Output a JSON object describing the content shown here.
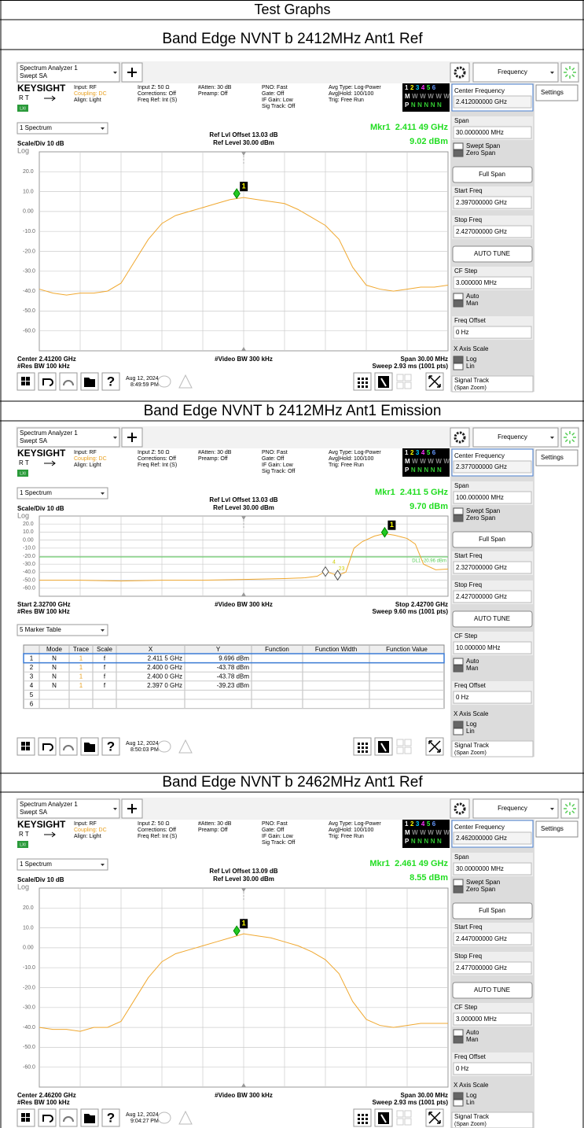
{
  "title": "Test Graphs",
  "sections": [
    {
      "caption": "Band Edge NVNT b 2412MHz Ant1 Ref",
      "screen": {
        "app": [
          "Spectrum Analyzer 1",
          "Swept SA"
        ],
        "menu": "Frequency",
        "brand": "KEYSIGHT",
        "rt": "R  T",
        "lxi": "LXI",
        "status": [
          [
            "Input: RF",
            "Coupling: DC",
            "Align: Light"
          ],
          [
            "Input Z: 50 Ω",
            "Corrections: Off",
            "Freq Ref: Int (S)"
          ],
          [
            "#Atten: 30 dB",
            "Preamp: Off"
          ],
          [
            "PNO: Fast",
            "Gate: Off",
            "IF Gain: Low",
            "Sig Track: Off"
          ],
          [
            "Avg Type: Log-Power",
            "Avg|Hold: 100/100",
            "Trig: Free Run"
          ]
        ],
        "trace_flags": [
          "123456",
          "MWWWWW",
          "PNNNNN"
        ],
        "view": "1 Spectrum",
        "ref_offset": "Ref Lvl Offset 13.03 dB",
        "ref_level": "Ref Level 30.00 dBm",
        "marker_freq": "Mkr1  2.411 49 GHz",
        "marker_level": "9.02 dBm",
        "scale": "Scale/Div 10 dB",
        "log": "Log",
        "chart": {
          "type": "line",
          "color": "#f0a830",
          "marker_color": "#22c922",
          "xlim": [
            2.397,
            2.427
          ],
          "ylim": [
            -70,
            30
          ],
          "yticks": [
            {
              "value": 20,
              "label": "20.0"
            },
            {
              "value": 10,
              "label": "10.0"
            },
            {
              "value": 0,
              "label": "0.00"
            },
            {
              "value": -10,
              "label": "-10.0"
            },
            {
              "value": -20,
              "label": "-20.0"
            },
            {
              "value": -30,
              "label": "-30.0"
            },
            {
              "value": -40,
              "label": "-40.0"
            },
            {
              "value": -50,
              "label": "-50.0"
            },
            {
              "value": -60,
              "label": "-60.0"
            }
          ],
          "trace": {
            "x": [
              2.397,
              2.398,
              2.399,
              2.4,
              2.401,
              2.402,
              2.403,
              2.404,
              2.405,
              2.406,
              2.407,
              2.408,
              2.409,
              2.41,
              2.411,
              2.412,
              2.413,
              2.414,
              2.415,
              2.416,
              2.417,
              2.418,
              2.419,
              2.42,
              2.421,
              2.422,
              2.423,
              2.424,
              2.425,
              2.426,
              2.427
            ],
            "values": [
              -39,
              -41,
              -42,
              -41,
              -41,
              -40,
              -36,
              -25,
              -14,
              -6,
              -2,
              0,
              2,
              4,
              6,
              7,
              6,
              5,
              4,
              1,
              -3,
              -7,
              -14,
              -28,
              -37,
              -39,
              -40,
              -39,
              -38,
              -38,
              -37
            ]
          },
          "markers": [
            {
              "label": "1",
              "x": 2.41149,
              "y": 9.02
            }
          ]
        },
        "footer": {
          "left1": "Center 2.41200 GHz",
          "left2": "#Res BW 100 kHz",
          "mid": "#Video BW 300 kHz",
          "right1": "Span 30.00 MHz",
          "right2": "Sweep 2.93 ms (1001 pts)"
        },
        "help": "?",
        "date": [
          "Aug 12, 2024",
          "8:49:59 PM"
        ],
        "panel": {
          "settings": "Settings",
          "center_freq": [
            "Center Frequency",
            "2.412000000 GHz"
          ],
          "span": [
            "Span",
            "30.0000000 MHz"
          ],
          "span_mode": [
            "Swept Span",
            "Zero Span"
          ],
          "full_span": "Full Span",
          "start_freq": [
            "Start Freq",
            "2.397000000 GHz"
          ],
          "stop_freq": [
            "Stop Freq",
            "2.427000000 GHz"
          ],
          "auto_tune": "AUTO TUNE",
          "cf_step": [
            "CF Step",
            "3.000000 MHz"
          ],
          "cf_mode": [
            "Auto",
            "Man"
          ],
          "freq_offset": [
            "Freq Offset",
            "0 Hz"
          ],
          "x_scale": "X Axis Scale",
          "x_scale_mode": [
            "Log",
            "Lin"
          ],
          "signal_track": [
            "Signal Track",
            "(Span Zoom)"
          ]
        }
      }
    },
    {
      "caption": "Band Edge NVNT b 2412MHz Ant1 Emission",
      "screen": {
        "app": [
          "Spectrum Analyzer 1",
          "Swept SA"
        ],
        "menu": "Frequency",
        "brand": "KEYSIGHT",
        "rt": "R  T",
        "lxi": "LXI",
        "status": [
          [
            "Input: RF",
            "Coupling: DC",
            "Align: Light"
          ],
          [
            "Input Z: 50 Ω",
            "Corrections: Off",
            "Freq Ref: Int (S)"
          ],
          [
            "#Atten: 30 dB",
            "Preamp: Off"
          ],
          [
            "PNO: Fast",
            "Gate: Off",
            "IF Gain: Low",
            "Sig Track: Off"
          ],
          [
            "Avg Type: Log-Power",
            "Avg|Hold: 100/100",
            "Trig: Free Run"
          ]
        ],
        "trace_flags": [
          "123456",
          "MWWWWW",
          "PNNNNN"
        ],
        "view": "1 Spectrum",
        "ref_offset": "Ref Lvl Offset 13.03 dB",
        "ref_level": "Ref Level 30.00 dBm",
        "marker_freq": "Mkr1  2.411 5 GHz",
        "marker_level": "9.70 dBm",
        "scale": "Scale/Div 10 dB",
        "log": "Log",
        "chart": {
          "type": "line",
          "color": "#f0a830",
          "marker_color": "#22c922",
          "xlim": [
            2.327,
            2.427
          ],
          "ylim": [
            -70,
            30
          ],
          "yticks": [
            {
              "value": 20,
              "label": "20.0"
            },
            {
              "value": 10,
              "label": "10.0"
            },
            {
              "value": 0,
              "label": "0.00"
            },
            {
              "value": -10,
              "label": "-10.0"
            },
            {
              "value": -20,
              "label": "-20.0"
            },
            {
              "value": -30,
              "label": "-30.0"
            },
            {
              "value": -40,
              "label": "-40.0"
            },
            {
              "value": -50,
              "label": "-50.0"
            },
            {
              "value": -60,
              "label": "-60.0"
            }
          ],
          "display_line": {
            "value": -20.96,
            "label": "DL1 -20.96 dBm"
          },
          "trace": {
            "x": [
              2.327,
              2.337,
              2.347,
              2.357,
              2.367,
              2.377,
              2.387,
              2.392,
              2.395,
              2.397,
              2.4,
              2.402,
              2.404,
              2.406,
              2.409,
              2.4115,
              2.414,
              2.417,
              2.419,
              2.421,
              2.424,
              2.427
            ],
            "values": [
              -50,
              -50,
              -51,
              -50,
              -50,
              -49,
              -48,
              -47,
              -45,
              -39,
              -44,
              -40,
              -10,
              -2,
              5,
              8,
              6,
              2,
              -5,
              -30,
              -37,
              -36
            ]
          },
          "markers": [
            {
              "label": "1",
              "x": 2.4115,
              "y": 9.696
            },
            {
              "label": "2",
              "x": 2.4,
              "y": -43.78
            },
            {
              "label": "3",
              "x": 2.4,
              "y": -43.78
            },
            {
              "label": "4",
              "x": 2.397,
              "y": -39.23
            }
          ]
        },
        "footer": {
          "left1": "Start 2.32700 GHz",
          "left2": "#Res BW 100 kHz",
          "mid": "#Video BW 300 kHz",
          "right1": "Stop 2.42700 GHz",
          "right2": "Sweep 9.60 ms (1001 pts)"
        },
        "marker_table": {
          "title": "5 Marker Table",
          "header": [
            "Mode",
            "Trace",
            "Scale",
            "X",
            "Y",
            "Function",
            "Function Width",
            "Function Value"
          ],
          "rows": [
            [
              "1",
              "N",
              "1",
              "f",
              "2.411 5 GHz",
              "9.696 dBm"
            ],
            [
              "2",
              "N",
              "1",
              "f",
              "2.400 0 GHz",
              "-43.78 dBm"
            ],
            [
              "3",
              "N",
              "1",
              "f",
              "2.400 0 GHz",
              "-43.78 dBm"
            ],
            [
              "4",
              "N",
              "1",
              "f",
              "2.397 0 GHz",
              "-39.23 dBm"
            ],
            [
              "5"
            ],
            [
              "6"
            ]
          ]
        },
        "help": "?",
        "date": [
          "Aug 12, 2024",
          "8:50:03 PM"
        ],
        "panel": {
          "settings": "Settings",
          "center_freq": [
            "Center Frequency",
            "2.377000000 GHz"
          ],
          "span": [
            "Span",
            "100.000000 MHz"
          ],
          "span_mode": [
            "Swept Span",
            "Zero Span"
          ],
          "full_span": "Full Span",
          "start_freq": [
            "Start Freq",
            "2.327000000 GHz"
          ],
          "stop_freq": [
            "Stop Freq",
            "2.427000000 GHz"
          ],
          "auto_tune": "AUTO TUNE",
          "cf_step": [
            "CF Step",
            "10.000000 MHz"
          ],
          "cf_mode": [
            "Auto",
            "Man"
          ],
          "freq_offset": [
            "Freq Offset",
            "0 Hz"
          ],
          "x_scale": "X Axis Scale",
          "x_scale_mode": [
            "Log",
            "Lin"
          ],
          "signal_track": [
            "Signal Track",
            "(Span Zoom)"
          ]
        }
      }
    },
    {
      "caption": "Band Edge NVNT b 2462MHz Ant1 Ref",
      "screen": {
        "app": [
          "Spectrum Analyzer 1",
          "Swept SA"
        ],
        "menu": "Frequency",
        "brand": "KEYSIGHT",
        "rt": "R  T",
        "lxi": "LXI",
        "status": [
          [
            "Input: RF",
            "Coupling: DC",
            "Align: Light"
          ],
          [
            "Input Z: 50 Ω",
            "Corrections: Off",
            "Freq Ref: Int (S)"
          ],
          [
            "#Atten: 30 dB",
            "Preamp: Off"
          ],
          [
            "PNO: Fast",
            "Gate: Off",
            "IF Gain: Low",
            "Sig Track: Off"
          ],
          [
            "Avg Type: Log-Power",
            "Avg|Hold: 100/100",
            "Trig: Free Run"
          ]
        ],
        "trace_flags": [
          "123456",
          "MWWWWW",
          "PNNNNN"
        ],
        "view": "1 Spectrum",
        "ref_offset": "Ref Lvl Offset 13.09 dB",
        "ref_level": "Ref Level 30.00 dBm",
        "marker_freq": "Mkr1  2.461 49 GHz",
        "marker_level": "8.55 dBm",
        "scale": "Scale/Div 10 dB",
        "log": "Log",
        "chart": {
          "type": "line",
          "color": "#f0a830",
          "marker_color": "#22c922",
          "xlim": [
            2.447,
            2.477
          ],
          "ylim": [
            -70,
            30
          ],
          "yticks": [
            {
              "value": 20,
              "label": "20.0"
            },
            {
              "value": 10,
              "label": "10.0"
            },
            {
              "value": 0,
              "label": "0.00"
            },
            {
              "value": -10,
              "label": "-10.0"
            },
            {
              "value": -20,
              "label": "-20.0"
            },
            {
              "value": -30,
              "label": "-30.0"
            },
            {
              "value": -40,
              "label": "-40.0"
            },
            {
              "value": -50,
              "label": "-50.0"
            },
            {
              "value": -60,
              "label": "-60.0"
            }
          ],
          "trace": {
            "x": [
              2.447,
              2.448,
              2.449,
              2.45,
              2.451,
              2.452,
              2.453,
              2.454,
              2.455,
              2.456,
              2.457,
              2.458,
              2.459,
              2.46,
              2.461,
              2.462,
              2.463,
              2.464,
              2.465,
              2.466,
              2.467,
              2.468,
              2.469,
              2.47,
              2.471,
              2.472,
              2.473,
              2.474,
              2.475,
              2.476,
              2.477
            ],
            "values": [
              -40,
              -41,
              -41,
              -42,
              -40,
              -40,
              -37,
              -26,
              -15,
              -7,
              -3,
              -1,
              1,
              3,
              5,
              7,
              6,
              5,
              3,
              1,
              -2,
              -6,
              -13,
              -27,
              -36,
              -39,
              -40,
              -39,
              -38,
              -38,
              -38
            ]
          },
          "markers": [
            {
              "label": "1",
              "x": 2.46149,
              "y": 8.55
            }
          ]
        },
        "footer": {
          "left1": "Center 2.46200 GHz",
          "left2": "#Res BW 100 kHz",
          "mid": "#Video BW 300 kHz",
          "right1": "Span 30.00 MHz",
          "right2": "Sweep 2.93 ms (1001 pts)"
        },
        "help": "?",
        "date": [
          "Aug 12, 2024",
          "9:04:27 PM"
        ],
        "panel": {
          "settings": "Settings",
          "center_freq": [
            "Center Frequency",
            "2.462000000 GHz"
          ],
          "span": [
            "Span",
            "30.0000000 MHz"
          ],
          "span_mode": [
            "Swept Span",
            "Zero Span"
          ],
          "full_span": "Full Span",
          "start_freq": [
            "Start Freq",
            "2.447000000 GHz"
          ],
          "stop_freq": [
            "Stop Freq",
            "2.477000000 GHz"
          ],
          "auto_tune": "AUTO TUNE",
          "cf_step": [
            "CF Step",
            "3.000000 MHz"
          ],
          "cf_mode": [
            "Auto",
            "Man"
          ],
          "freq_offset": [
            "Freq Offset",
            "0 Hz"
          ],
          "x_scale": "X Axis Scale",
          "x_scale_mode": [
            "Log",
            "Lin"
          ],
          "signal_track": [
            "Signal Track",
            "(Span Zoom)"
          ]
        }
      }
    }
  ]
}
